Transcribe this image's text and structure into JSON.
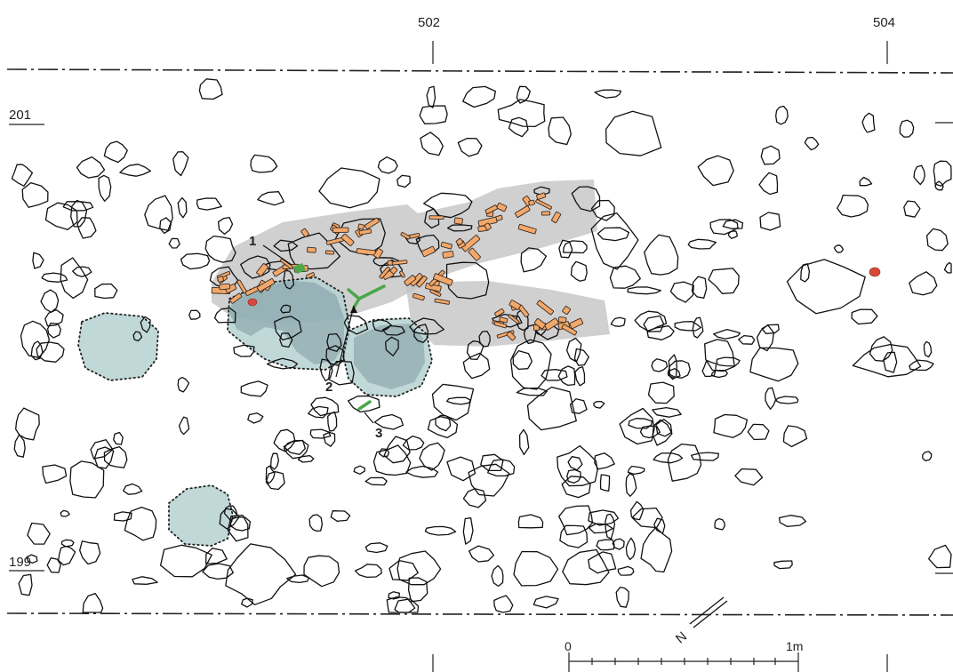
{
  "grid": {
    "x_labels": [
      "502",
      "504"
    ],
    "y_labels": [
      "201",
      "199"
    ]
  },
  "annotations": {
    "find_1": "1",
    "find_2": "2",
    "find_3": "3"
  },
  "north_arrow": {
    "label": "N"
  },
  "scale_bar": {
    "start_label": "0",
    "end_label": "1m"
  },
  "colors": {
    "bone_fragments": "#f2a86b",
    "hearth_fill": "#b5d1d1",
    "dark_zone": "#7d9ba2",
    "activity_band": "#c4c4c6",
    "green_finds": "#4aa84a",
    "red_finds": "#d9483b"
  }
}
